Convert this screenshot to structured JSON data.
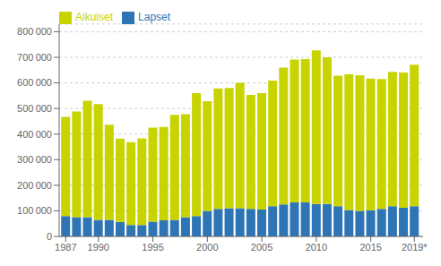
{
  "chart_data": {
    "type": "bar",
    "stacked": true,
    "grid": true,
    "legend": "upper left",
    "x": [
      1987,
      1988,
      1989,
      1990,
      1991,
      1992,
      1993,
      1994,
      1995,
      1996,
      1997,
      1998,
      1999,
      2000,
      2001,
      2002,
      2003,
      2004,
      2005,
      2006,
      2007,
      2008,
      2009,
      2010,
      2011,
      2012,
      2013,
      2014,
      2015,
      2016,
      2017,
      2018,
      2019
    ],
    "series": [
      {
        "name": "Lapset",
        "color": "#2E75B6",
        "values": [
          80000,
          75000,
          75000,
          65000,
          65000,
          57000,
          45000,
          45000,
          58000,
          63000,
          65000,
          75000,
          80000,
          100000,
          108000,
          110000,
          110000,
          108000,
          105000,
          118000,
          125000,
          133000,
          133000,
          127000,
          127000,
          118000,
          103000,
          100000,
          102000,
          108000,
          118000,
          112000,
          118000
        ]
      },
      {
        "name": "Aikuiset",
        "color": "#C8D400",
        "values": [
          387000,
          413000,
          455000,
          452000,
          372000,
          325000,
          323000,
          338000,
          367000,
          365000,
          410000,
          403000,
          480000,
          428000,
          470000,
          470000,
          490000,
          445000,
          455000,
          491000,
          535000,
          558000,
          560000,
          600000,
          573000,
          510000,
          530000,
          530000,
          515000,
          507000,
          525000,
          528000,
          553000
        ]
      }
    ],
    "xlim": [
      1986.4,
      2019.8
    ],
    "xticks": [
      1987,
      1990,
      1995,
      2000,
      2005,
      2010,
      2015,
      {
        "value": 2019,
        "label": "2019*"
      }
    ],
    "ylim": [
      0,
      830000
    ],
    "yticks": [
      0,
      {
        "value": 100000,
        "label": "100 000"
      },
      {
        "value": 200000,
        "label": "200 000"
      },
      {
        "value": 300000,
        "label": "300 000"
      },
      {
        "value": 400000,
        "label": "400 000"
      },
      {
        "value": 500000,
        "label": "500 000"
      },
      {
        "value": 600000,
        "label": "600 000"
      },
      {
        "value": 700000,
        "label": "700 000"
      },
      {
        "value": 800000,
        "label": "800 000"
      }
    ]
  }
}
